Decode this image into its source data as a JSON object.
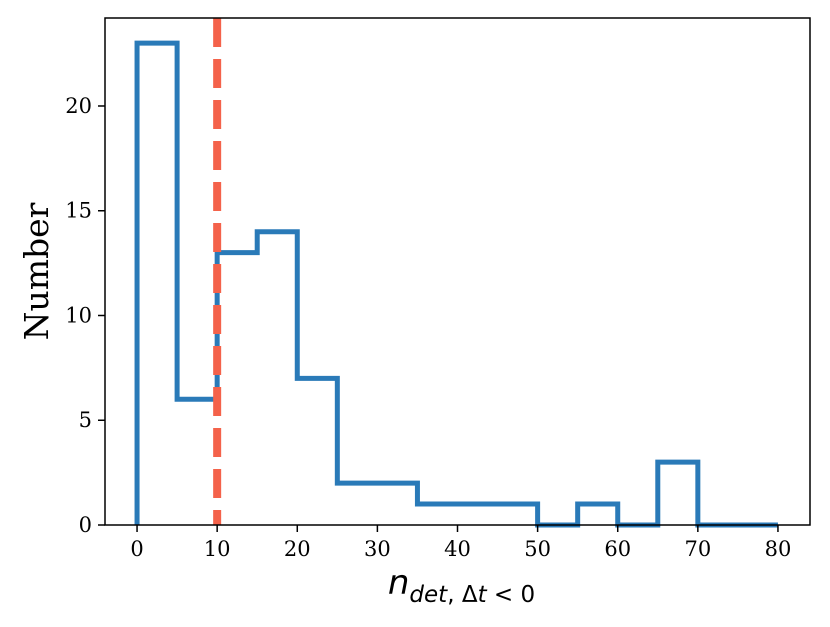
{
  "chart_data": {
    "type": "histogram",
    "bin_edges": [
      0,
      5,
      10,
      15,
      20,
      25,
      30,
      35,
      40,
      45,
      50,
      55,
      60,
      65,
      70,
      75,
      80
    ],
    "values": [
      23,
      6,
      13,
      14,
      7,
      2,
      2,
      1,
      1,
      1,
      0,
      1,
      0,
      3,
      0,
      0
    ],
    "xlabel": {
      "main": "n",
      "sub_italic": "det",
      "sub_upright_1": ", Δ",
      "sub_italic_2": "t",
      "sub_upright_2": " < 0"
    },
    "ylabel": "Number",
    "xlim": [
      -4,
      84
    ],
    "ylim": [
      0,
      24.2
    ],
    "xticks": [
      0,
      10,
      20,
      30,
      40,
      50,
      60,
      70,
      80
    ],
    "yticks": [
      0,
      5,
      10,
      15,
      20
    ],
    "threshold_line": {
      "x": 10,
      "style": "dashed"
    },
    "colors": {
      "histogram": "#2a7ab8",
      "threshold": "#f4624a"
    },
    "grid": false
  }
}
